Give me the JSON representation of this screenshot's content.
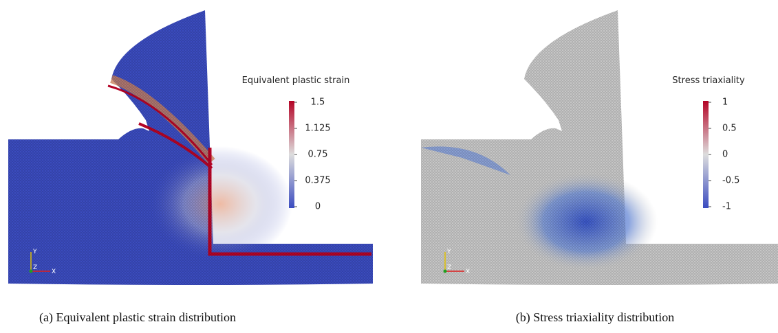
{
  "panels": [
    {
      "colorbar": {
        "title": "Equivalent plastic strain",
        "ticks": [
          "1.5",
          "1.125",
          "0.75",
          "0.375",
          "0"
        ]
      },
      "axes": {
        "y": "Y",
        "z": "Z",
        "x": "X"
      },
      "caption": "(a) Equivalent plastic strain distribution"
    },
    {
      "colorbar": {
        "title": "Stress triaxiality",
        "ticks": [
          "1",
          "0.5",
          "0",
          "-0.5",
          "-1"
        ]
      },
      "axes": {
        "y": "Y",
        "z": "Z",
        "x": "X"
      },
      "caption": "(b) Stress triaxiality distribution"
    }
  ]
}
